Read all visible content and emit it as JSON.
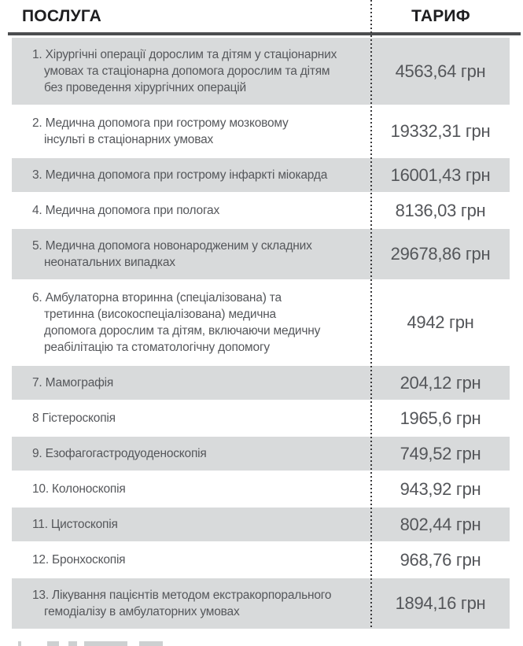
{
  "header": {
    "service_label": "ПОСЛУГА",
    "tariff_label": "ТАРИФ"
  },
  "rows": [
    {
      "service": "1. Хірургічні операції дорослим та дітям у стаціонарних\nумовах та стаціонарна допомога дорослим та дітям\nбез проведення хірургічних операцій",
      "tariff": "4563,64 грн"
    },
    {
      "service": "2. Медична допомога при гострому мозковому\nінсульті в стаціонарних умовах",
      "tariff": "19332,31 грн"
    },
    {
      "service": "3. Медична допомога при гострому інфаркті міокарда",
      "tariff": "16001,43 грн"
    },
    {
      "service": "4. Медична допомога при пологах",
      "tariff": "8136,03 грн"
    },
    {
      "service": "5. Медична допомога новонародженим у складних\nнеонатальних випадках",
      "tariff": "29678,86 грн"
    },
    {
      "service": "6. Амбулаторна вторинна (спеціалізована) та\nтретинна (високоспеціалізована) медична\nдопомога дорослим та дітям, включаючи медичну\nреабілітацію та стоматологічну допомогу",
      "tariff": "4942 грн"
    },
    {
      "service": "7. Мамографія",
      "tariff": "204,12 грн"
    },
    {
      "service": "8 Гістероскопія",
      "tariff": "1965,6 грн"
    },
    {
      "service": "9. Езофагогастродуоденоскопія",
      "tariff": "749,52 грн"
    },
    {
      "service": "10. Колоноскопія",
      "tariff": "943,92 грн"
    },
    {
      "service": "11. Цистоскопія",
      "tariff": "802,44 грн"
    },
    {
      "service": "12. Бронхоскопія",
      "tariff": "968,76 грн"
    },
    {
      "service": "13. Лікування пацієнтів методом екстракорпорального\nгемодіалізу в амбулаторних умовах",
      "tariff": "1894,16 грн"
    }
  ],
  "colors": {
    "row_shade": "#d8dadb",
    "body_text": "#55575b",
    "header_text": "#1e1e20",
    "divider": "#4b4d4f"
  }
}
